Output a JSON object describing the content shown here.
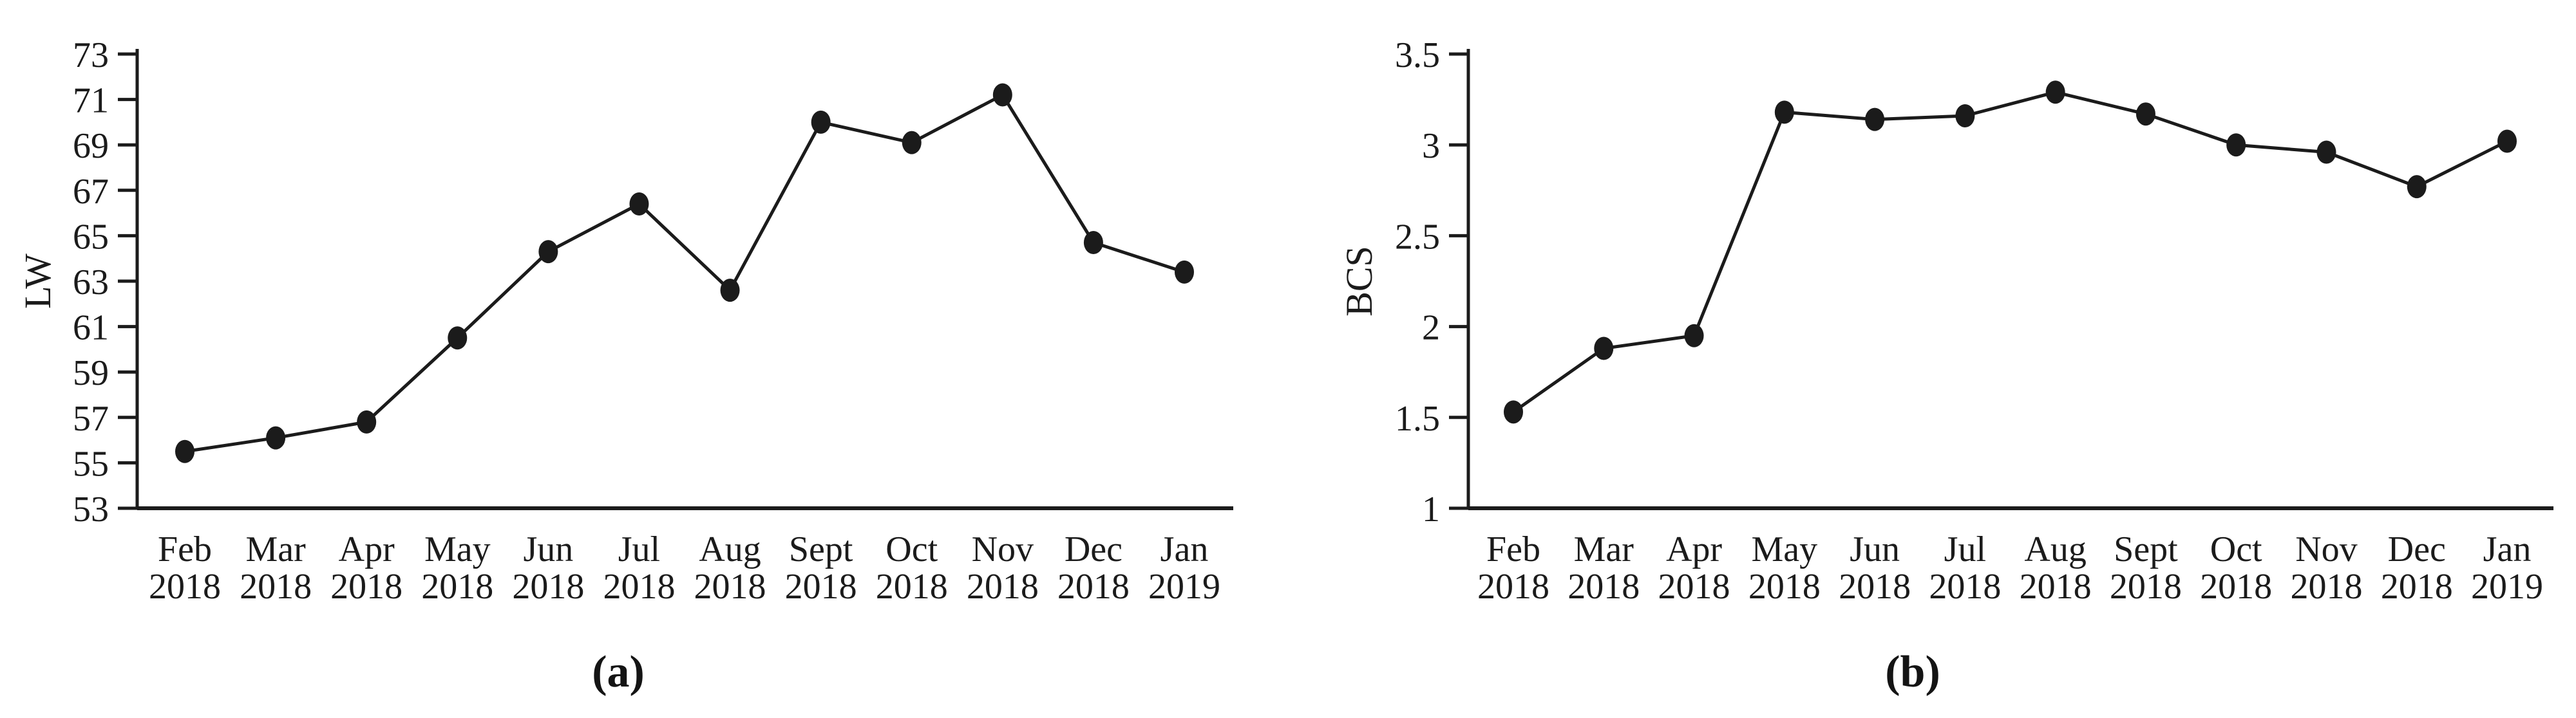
{
  "figure": {
    "background_color": "#ffffff",
    "ink_color": "#1b1b1b",
    "panels": [
      {
        "caption": "(a)",
        "axis_label": "LW"
      },
      {
        "caption": "(b)",
        "axis_label": "BCS"
      }
    ]
  },
  "chart_data": [
    {
      "type": "line",
      "title": "",
      "xlabel": "",
      "ylabel": "LW",
      "caption": "(a)",
      "legend": "none",
      "grid": false,
      "line_color": "#1b1b1b",
      "marker": "filled-black-circle",
      "categories": [
        "Feb 2018",
        "Mar 2018",
        "Apr 2018",
        "May 2018",
        "Jun 2018",
        "Jul 2018",
        "Aug 2018",
        "Sept 2018",
        "Oct 2018",
        "Nov 2018",
        "Dec 2018",
        "Jan 2019"
      ],
      "values": [
        55.5,
        56.1,
        56.8,
        60.5,
        64.3,
        66.4,
        62.6,
        70.0,
        69.1,
        71.2,
        64.7,
        63.4
      ],
      "ylim": [
        53,
        73
      ],
      "yticks": [
        53,
        55,
        57,
        59,
        61,
        63,
        65,
        67,
        69,
        71,
        73
      ],
      "ytick_labels": [
        "53",
        "55",
        "57",
        "59",
        "61",
        "63",
        "65",
        "67",
        "69",
        "71",
        "73"
      ]
    },
    {
      "type": "line",
      "title": "",
      "xlabel": "",
      "ylabel": "BCS",
      "caption": "(b)",
      "legend": "none",
      "grid": false,
      "line_color": "#1b1b1b",
      "marker": "filled-black-circle",
      "categories": [
        "Feb 2018",
        "Mar 2018",
        "Apr 2018",
        "May 2018",
        "Jun 2018",
        "Jul 2018",
        "Aug 2018",
        "Sept 2018",
        "Oct 2018",
        "Nov 2018",
        "Dec 2018",
        "Jan 2019"
      ],
      "values": [
        1.53,
        1.88,
        1.95,
        3.18,
        3.14,
        3.16,
        3.29,
        3.17,
        3.0,
        2.96,
        2.77,
        3.02
      ],
      "ylim": [
        1,
        3.5
      ],
      "yticks": [
        1,
        1.5,
        2,
        2.5,
        3,
        3.5
      ],
      "ytick_labels": [
        "1",
        "1.5",
        "2",
        "2.5",
        "3",
        "3.5"
      ]
    }
  ]
}
